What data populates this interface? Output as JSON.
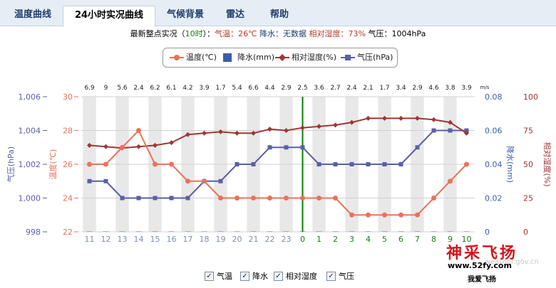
{
  "tabs": [
    {
      "label": "温度曲线",
      "active": false
    },
    {
      "label": "24小时实况曲线",
      "active": true
    },
    {
      "label": "气候背景",
      "active": false
    },
    {
      "label": "雷达",
      "active": false
    },
    {
      "label": "帮助",
      "active": false
    }
  ],
  "info": {
    "prefix": "最新整点实况（",
    "hour": "10时",
    "mid": "）：",
    "temp_label": "气温：",
    "temp_value": "26℃",
    "rain_label": "降水：",
    "rain_value": "无数据",
    "hum_label": "相对湿度：",
    "hum_value": "73%",
    "pres_label": "气压：",
    "pres_value": "1004hPa"
  },
  "legend": {
    "temp": "温度(℃)",
    "rain": "降水(mm)",
    "hum": "相对湿度(%)",
    "pres": "气压(hPa)"
  },
  "checkboxes": [
    {
      "label": "气温",
      "checked": true
    },
    {
      "label": "降水",
      "checked": true
    },
    {
      "label": "相对湿度",
      "checked": true
    },
    {
      "label": "气压",
      "checked": true
    }
  ],
  "watermark": {
    "logo": "神采飞扬",
    "url": "www.52fy.com",
    "url_faint": "weather.gov.cn",
    "slogan": "我爱飞扬"
  },
  "colors": {
    "temp": "#e8735a",
    "rain": "#3a5faa",
    "hum": "#a33434",
    "pres": "#5a5fa8",
    "midnight": "#008000"
  },
  "chart_data": {
    "type": "line",
    "x": [
      "11",
      "12",
      "13",
      "14",
      "15",
      "16",
      "17",
      "18",
      "19",
      "20",
      "21",
      "22",
      "23",
      "0",
      "1",
      "2",
      "3",
      "4",
      "5",
      "6",
      "7",
      "8",
      "9",
      "10"
    ],
    "series": [
      {
        "name": "温度(℃)",
        "axis": "temp",
        "values": [
          26,
          26,
          27,
          28,
          26,
          26,
          25,
          25,
          24,
          24,
          24,
          24,
          24,
          24,
          24,
          24,
          23,
          23,
          23,
          23,
          23,
          24,
          25,
          26
        ]
      },
      {
        "name": "相对湿度(%)",
        "axis": "hum",
        "values": [
          64,
          63,
          62,
          63,
          64,
          66,
          72,
          73,
          74,
          73,
          73,
          76,
          75,
          77,
          78,
          79,
          81,
          84,
          84,
          84,
          84,
          83,
          81,
          73
        ]
      },
      {
        "name": "气压(hPa)",
        "axis": "pres",
        "values": [
          1001,
          1001,
          1000,
          1000,
          1000,
          1000,
          1000,
          1001,
          1001,
          1002,
          1002,
          1003,
          1003,
          1003,
          1002,
          1002,
          1002,
          1002,
          1002,
          1002,
          1003,
          1004,
          1004,
          1004
        ]
      },
      {
        "name": "降水(mm)",
        "axis": "rain",
        "values": [
          0,
          0,
          0,
          0,
          0,
          0,
          0,
          0,
          0,
          0,
          0,
          0,
          0,
          0,
          0,
          0,
          0,
          0,
          0,
          0,
          0,
          0,
          0,
          0
        ]
      }
    ],
    "wind": [
      "6.9",
      "9",
      "5.6",
      "2.4",
      "6.2",
      "6.1",
      "4.2",
      "3.9",
      "1.7",
      "5.4",
      "6.6",
      "4.4",
      "2.9",
      "2.5",
      "3.6",
      "2.7",
      "2.4",
      "2.1",
      "1.7",
      "3.4",
      "2.9",
      "4.6",
      "3.8",
      "3.9"
    ],
    "wind_unit": "m/s",
    "y_pres": {
      "label": "气压(hPa)",
      "ticks": [
        "998",
        "1,000",
        "1,002",
        "1,004",
        "1,006"
      ],
      "min": 998,
      "max": 1006
    },
    "y_temp": {
      "label": "温度(℃)",
      "ticks": [
        "22",
        "24",
        "26",
        "28",
        "30"
      ],
      "min": 22,
      "max": 30
    },
    "y_rain": {
      "label": "降水(mm)",
      "ticks": [
        "0",
        "0.02",
        "0.04",
        "0.06",
        "0.08"
      ],
      "min": 0,
      "max": 0.08
    },
    "y_hum": {
      "label": "相对湿度(%)",
      "ticks": [
        "0",
        "25",
        "50",
        "75",
        "100"
      ],
      "min": 0,
      "max": 100
    },
    "grid": true,
    "midnight_label": "0"
  }
}
